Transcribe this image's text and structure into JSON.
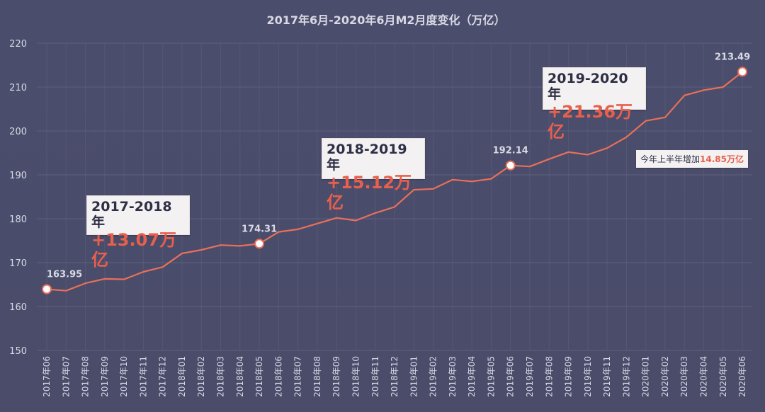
{
  "chart_data": {
    "type": "line",
    "title": "2017年6月-2020年6月M2月度变化（万亿）",
    "xlabel": "",
    "ylabel": "",
    "ylim": [
      150,
      220
    ],
    "yticks": [
      150,
      160,
      170,
      180,
      190,
      200,
      210,
      220
    ],
    "grid": true,
    "categories": [
      "2017年06",
      "2017年07",
      "2017年08",
      "2017年09",
      "2017年10",
      "2017年11",
      "2017年12",
      "2018年01",
      "2018年02",
      "2018年03",
      "2018年04",
      "2018年05",
      "2018年06",
      "2018年07",
      "2018年08",
      "2018年09",
      "2018年10",
      "2018年11",
      "2018年12",
      "2019年01",
      "2019年02",
      "2019年03",
      "2019年04",
      "2019年05",
      "2019年06",
      "2019年07",
      "2019年08",
      "2019年09",
      "2019年10",
      "2019年11",
      "2019年12",
      "2020年01",
      "2020年02",
      "2020年03",
      "2020年04",
      "2020年05",
      "2020年06"
    ],
    "series": [
      {
        "values": [
          163.95,
          163.6,
          165.3,
          166.3,
          166.2,
          167.9,
          169.0,
          172.1,
          172.9,
          174.0,
          173.8,
          174.31,
          177.0,
          177.6,
          178.9,
          180.2,
          179.6,
          181.3,
          182.7,
          186.6,
          186.8,
          188.9,
          188.5,
          189.1,
          192.14,
          191.9,
          193.6,
          195.2,
          194.6,
          196.1,
          198.6,
          202.3,
          203.1,
          208.1,
          209.3,
          210.0,
          213.49
        ]
      }
    ],
    "point_labels": [
      {
        "index": 0,
        "text": "163.95"
      },
      {
        "index": 11,
        "text": "174.31"
      },
      {
        "index": 24,
        "text": "192.14"
      },
      {
        "index": 36,
        "text": "213.49"
      }
    ],
    "annotations": [
      {
        "range": "2017-2018年",
        "delta": "+13.07万亿"
      },
      {
        "range": "2018-2019年",
        "delta": "+15.12万亿"
      },
      {
        "range": "2019-2020年",
        "delta": "+21.36万亿"
      }
    ],
    "note": {
      "prefix": "今年上半年增加",
      "highlight": "14.85万亿"
    },
    "colors": {
      "line": "#e8705a",
      "background": "#4a4c6b",
      "grid": "#5e607e",
      "text": "#d8d9e4",
      "accent": "#e8604c"
    }
  }
}
